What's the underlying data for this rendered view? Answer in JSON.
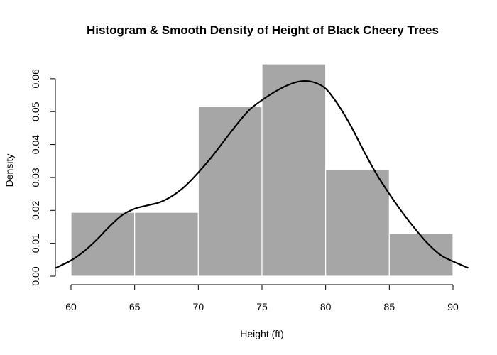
{
  "chart_data": {
    "type": "bar",
    "title": "Histogram & Smooth Density of Height of Black Cheery Trees",
    "xlabel": "Height (ft)",
    "ylabel": "Density",
    "xlim": [
      60,
      90
    ],
    "ylim": [
      0,
      0.0645
    ],
    "x_ticks": [
      60,
      65,
      70,
      75,
      80,
      85,
      90
    ],
    "x_tick_labels": [
      "60",
      "65",
      "70",
      "75",
      "80",
      "85",
      "90"
    ],
    "y_ticks": [
      0,
      0.01,
      0.02,
      0.03,
      0.04,
      0.05,
      0.06
    ],
    "y_tick_labels": [
      "0.00",
      "0.01",
      "0.02",
      "0.03",
      "0.04",
      "0.05",
      "0.06"
    ],
    "grid": false,
    "bin_edges": [
      60,
      65,
      70,
      75,
      80,
      85,
      90
    ],
    "values": [
      0.0194,
      0.0194,
      0.0516,
      0.0645,
      0.0323,
      0.0129
    ],
    "bar_color": "#a6a6a6",
    "bar_edge_color": "#ffffff",
    "density_series": {
      "x": [
        58.8,
        60,
        61,
        62,
        63,
        64,
        65,
        66,
        67,
        68,
        69,
        70,
        71,
        72,
        73,
        74,
        75,
        76,
        77,
        78,
        79,
        80,
        81,
        82,
        83,
        84,
        85,
        86,
        87,
        88,
        89,
        90,
        91.2
      ],
      "y": [
        0.0025,
        0.0048,
        0.0075,
        0.011,
        0.015,
        0.0185,
        0.0205,
        0.0215,
        0.0225,
        0.0245,
        0.0275,
        0.0315,
        0.036,
        0.041,
        0.046,
        0.0505,
        0.0535,
        0.056,
        0.058,
        0.0592,
        0.059,
        0.057,
        0.052,
        0.0455,
        0.038,
        0.031,
        0.025,
        0.0195,
        0.0145,
        0.01,
        0.0065,
        0.0045,
        0.0025
      ],
      "color": "#000000"
    }
  }
}
